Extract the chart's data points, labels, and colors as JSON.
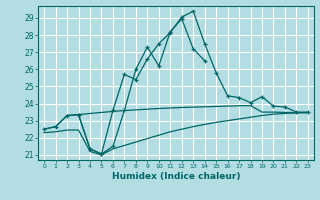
{
  "xlabel": "Humidex (Indice chaleur)",
  "bg_color": "#b2dde2",
  "grid_color": "#ffffff",
  "line_color": "#006666",
  "xlim": [
    -0.5,
    23.5
  ],
  "ylim": [
    20.7,
    29.7
  ],
  "xticks": [
    0,
    1,
    2,
    3,
    4,
    5,
    6,
    7,
    8,
    9,
    10,
    11,
    12,
    13,
    14,
    15,
    16,
    17,
    18,
    19,
    20,
    21,
    22,
    23
  ],
  "yticks": [
    21,
    22,
    23,
    24,
    25,
    26,
    27,
    28,
    29
  ],
  "curve1_x": [
    0,
    1,
    2,
    3,
    4,
    5,
    6,
    7,
    8,
    9,
    10,
    11,
    12,
    13,
    14,
    15,
    16,
    17,
    18,
    19,
    20,
    21,
    22,
    23
  ],
  "curve1_y": [
    22.5,
    22.65,
    23.3,
    23.35,
    21.35,
    21.05,
    23.6,
    25.7,
    25.4,
    26.6,
    27.5,
    28.15,
    29.05,
    29.4,
    27.5,
    25.8,
    24.45,
    24.35,
    24.05,
    24.4,
    23.85,
    23.8,
    23.5,
    23.5
  ],
  "curve2_x": [
    3,
    4,
    5,
    6,
    7,
    8,
    9,
    10,
    11,
    12,
    13,
    14
  ],
  "curve2_y": [
    23.35,
    21.35,
    21.05,
    21.5,
    23.6,
    26.0,
    27.3,
    26.2,
    28.2,
    28.95,
    27.2,
    26.5
  ],
  "curve3_x": [
    0,
    1,
    2,
    3,
    4,
    5,
    6,
    7,
    8,
    9,
    10,
    11,
    12,
    13,
    14,
    15,
    16,
    17,
    18,
    19,
    20,
    21,
    22,
    23
  ],
  "curve3_y": [
    22.5,
    22.65,
    23.3,
    23.35,
    23.42,
    23.48,
    23.54,
    23.59,
    23.63,
    23.67,
    23.71,
    23.74,
    23.77,
    23.79,
    23.81,
    23.83,
    23.85,
    23.87,
    23.88,
    23.5,
    23.5,
    23.48,
    23.47,
    23.46
  ],
  "curve4_x": [
    0,
    1,
    2,
    3,
    4,
    5,
    6,
    7,
    8,
    9,
    10,
    11,
    12,
    13,
    14,
    15,
    16,
    17,
    18,
    19,
    20,
    21,
    22,
    23
  ],
  "curve4_y": [
    22.3,
    22.35,
    22.45,
    22.45,
    21.2,
    21.0,
    21.35,
    21.55,
    21.75,
    21.95,
    22.15,
    22.35,
    22.5,
    22.65,
    22.78,
    22.9,
    23.0,
    23.1,
    23.2,
    23.3,
    23.38,
    23.42,
    23.45,
    23.48
  ]
}
